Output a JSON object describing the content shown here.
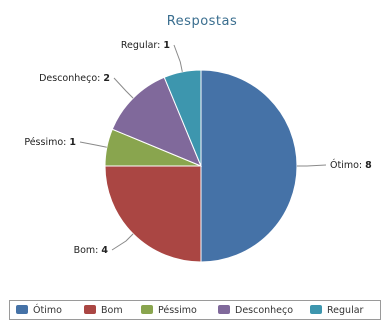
{
  "chart_data": {
    "type": "pie",
    "title": "Respostas",
    "legend_position": "bottom",
    "slices": [
      {
        "label": "Ótimo",
        "value": 8,
        "color": "#4572a7"
      },
      {
        "label": "Bom",
        "value": 4,
        "color": "#aa4643"
      },
      {
        "label": "Péssimo",
        "value": 1,
        "color": "#89a54e"
      },
      {
        "label": "Desconheço",
        "value": 2,
        "color": "#80699b"
      },
      {
        "label": "Regular",
        "value": 1,
        "color": "#3d96ae"
      }
    ]
  }
}
